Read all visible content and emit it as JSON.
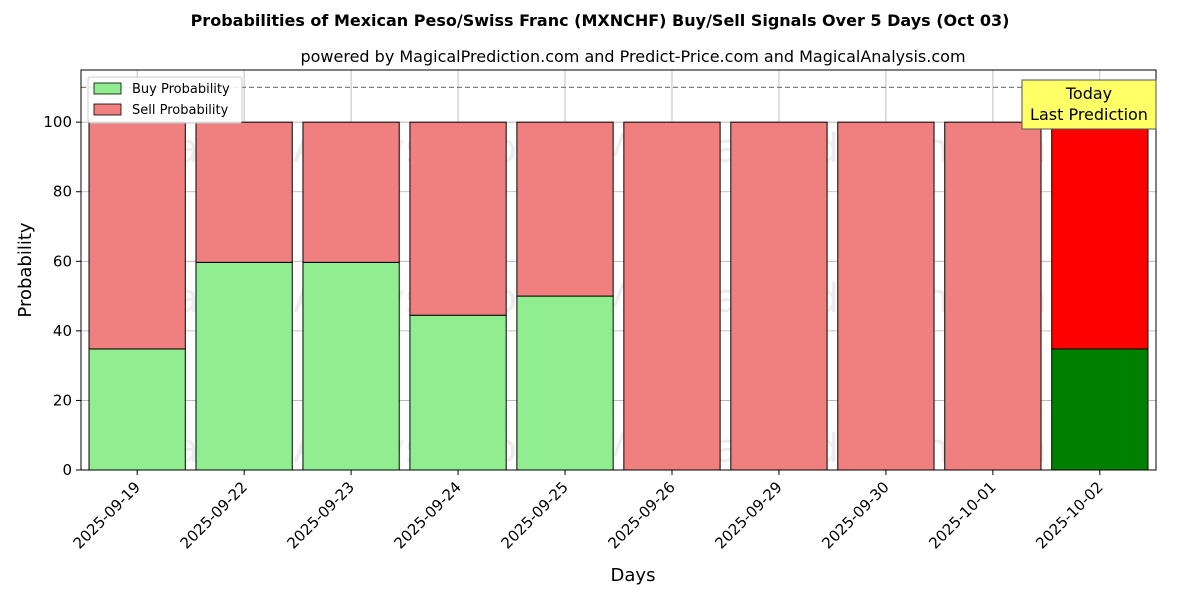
{
  "chart_data": {
    "type": "bar",
    "stacked": true,
    "title": "Probabilities of Mexican Peso/Swiss Franc (MXNCHF) Buy/Sell Signals Over 5 Days (Oct 03)",
    "subtitle": "powered by MagicalPrediction.com and Predict-Price.com and MagicalAnalysis.com",
    "xlabel": "Days",
    "ylabel": "Probability",
    "ylim": [
      0,
      115
    ],
    "yticks": [
      0,
      20,
      40,
      60,
      80,
      100
    ],
    "categories": [
      "2025-09-19",
      "2025-09-22",
      "2025-09-23",
      "2025-09-24",
      "2025-09-25",
      "2025-09-26",
      "2025-09-29",
      "2025-09-30",
      "2025-10-01",
      "2025-10-02"
    ],
    "series": [
      {
        "name": "Buy Probability",
        "color": "#90ee90",
        "highlight_color": "#008000",
        "values": [
          34.8,
          59.7,
          59.7,
          44.5,
          50.0,
          0,
          0,
          0,
          0,
          34.8
        ]
      },
      {
        "name": "Sell Probability",
        "color": "#f08080",
        "highlight_color": "#ff0000",
        "values": [
          65.2,
          40.3,
          40.3,
          55.5,
          50.0,
          100,
          100,
          100,
          100,
          65.2
        ]
      }
    ],
    "highlight_index": 9,
    "reference_line": {
      "y": 110,
      "style": "dashed",
      "color": "#808080"
    },
    "annotation": {
      "lines": [
        "Today",
        "Last Prediction"
      ],
      "background": "#ffff66"
    },
    "legend_position": "top-left",
    "grid": true,
    "watermarks": [
      "MagicalAnalysis.com",
      "MagicalPrediction.com"
    ]
  }
}
